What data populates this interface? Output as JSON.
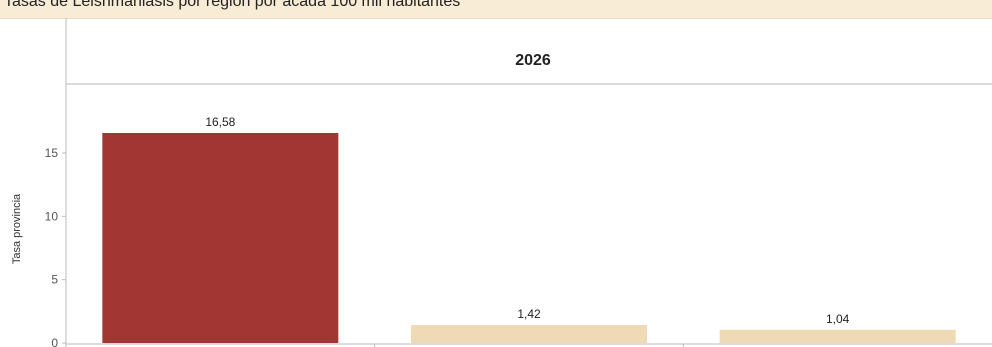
{
  "header": {
    "title": "Tasas de Leishmaniasis por región por acada 100 mil habitantes"
  },
  "chart_data": {
    "type": "bar",
    "panel_title": "2026",
    "ylabel": "Tasa provincia",
    "ylim": [
      0,
      18
    ],
    "yticks": [
      0,
      5,
      10,
      15
    ],
    "categories": [
      "",
      "",
      ""
    ],
    "values": [
      16.58,
      1.42,
      1.04
    ],
    "value_labels": [
      "16,58",
      "1,42",
      "1,04"
    ],
    "colors": [
      "#a13632",
      "#f0d9b5",
      "#f0d9b5"
    ],
    "grid": false
  }
}
